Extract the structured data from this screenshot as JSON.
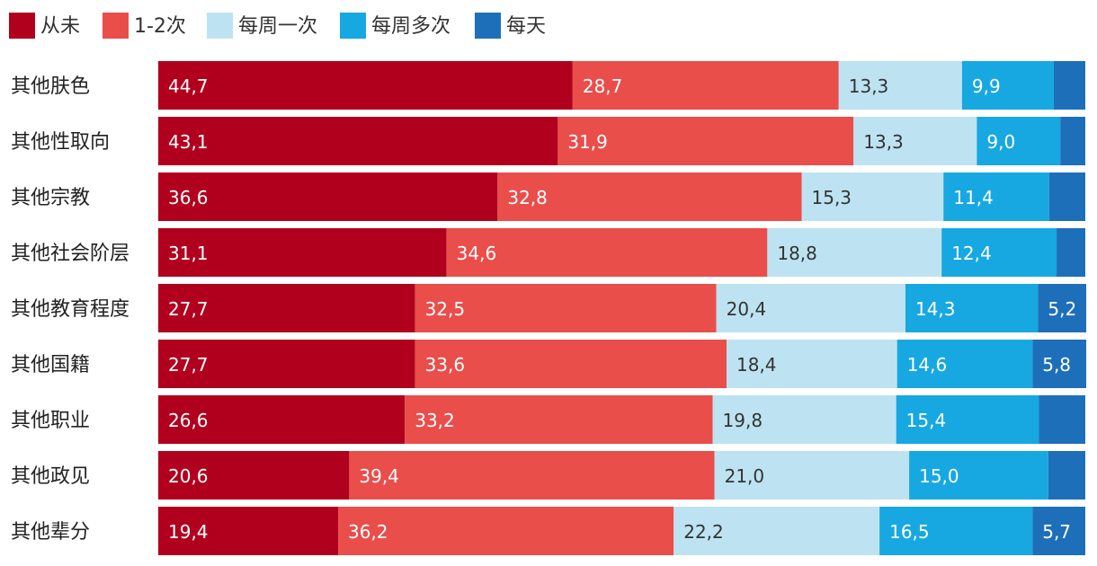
{
  "chart_data": {
    "type": "bar",
    "orientation": "horizontal",
    "stacked": true,
    "legend_position": "top-left",
    "grid": false,
    "categories": [
      "其他肤色",
      "其他性取向",
      "其他宗教",
      "其他社会阶层",
      "其他教育程度",
      "其他国籍",
      "其他职业",
      "其他政见",
      "其他辈分"
    ],
    "series": [
      {
        "name": "从未",
        "color": "#b1001e",
        "label_color": "#ffffff",
        "values": [
          44.7,
          43.1,
          36.6,
          31.1,
          27.7,
          27.7,
          26.6,
          20.6,
          19.4
        ],
        "labels": [
          "44,7",
          "43,1",
          "36,6",
          "31,1",
          "27,7",
          "27,7",
          "26,6",
          "20,6",
          "19,4"
        ]
      },
      {
        "name": "1-2次",
        "color": "#e94e4b",
        "label_color": "#ffffff",
        "values": [
          28.7,
          31.9,
          32.8,
          34.6,
          32.5,
          33.6,
          33.2,
          39.4,
          36.2
        ],
        "labels": [
          "28,7",
          "31,9",
          "32,8",
          "34,6",
          "32,5",
          "33,6",
          "33,2",
          "39,4",
          "36,2"
        ]
      },
      {
        "name": "每周一次",
        "color": "#bde3f2",
        "label_color": "#333333",
        "values": [
          13.3,
          13.3,
          15.3,
          18.8,
          20.4,
          18.4,
          19.8,
          21.0,
          22.2
        ],
        "labels": [
          "13,3",
          "13,3",
          "15,3",
          "18,8",
          "20,4",
          "18,4",
          "19,8",
          "21,0",
          "22,2"
        ]
      },
      {
        "name": "每周多次",
        "color": "#17a8e1",
        "label_color": "#ffffff",
        "values": [
          9.9,
          9.0,
          11.4,
          12.4,
          14.3,
          14.6,
          15.4,
          15.0,
          16.5
        ],
        "labels": [
          "9,9",
          "9,0",
          "11,4",
          "12,4",
          "14,3",
          "14,6",
          "15,4",
          "15,0",
          "16,5"
        ]
      },
      {
        "name": "每天",
        "color": "#1e6fba",
        "label_color": "#ffffff",
        "values": [
          3.4,
          2.7,
          3.9,
          3.1,
          5.2,
          5.8,
          5.0,
          4.0,
          5.7
        ],
        "labels": [
          "",
          "",
          "",
          "",
          "5,2",
          "5,8",
          "",
          "",
          "5,7"
        ]
      }
    ],
    "title": "",
    "xlabel": "",
    "ylabel": "",
    "xlim": [
      0,
      100
    ]
  }
}
